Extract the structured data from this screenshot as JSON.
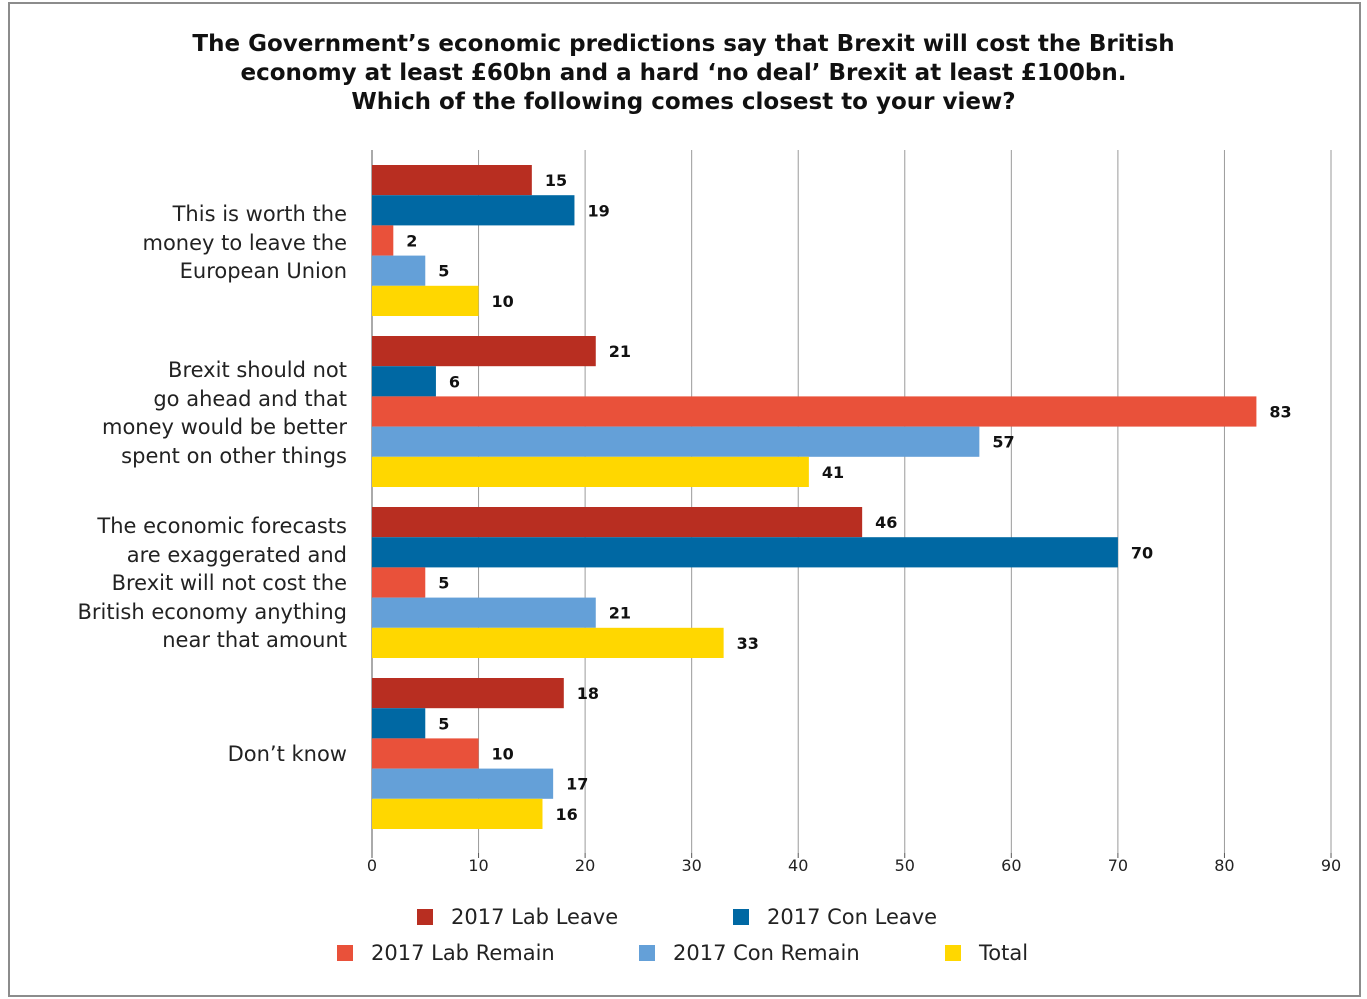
{
  "chart_data": {
    "type": "bar",
    "orientation": "horizontal",
    "title_lines": [
      "The Government’s economic predictions say that Brexit will cost the British",
      "economy at least £60bn and a hard ‘no deal’ Brexit at least £100bn.",
      "Which of the following comes closest to your view?"
    ],
    "categories": [
      [
        "This is worth the",
        "money to leave the",
        "European Union"
      ],
      [
        "Brexit should not",
        "go ahead and that",
        "money would be better",
        "spent on other things"
      ],
      [
        "The economic forecasts",
        "are exaggerated and",
        "Brexit will not cost the",
        "British economy anything",
        "near that amount"
      ],
      [
        "Don’t know"
      ]
    ],
    "series": [
      {
        "name": "2017 Lab Leave",
        "color": "#b82e21",
        "values": [
          15,
          21,
          46,
          18
        ]
      },
      {
        "name": "2017 Con Leave",
        "color": "#0068a3",
        "values": [
          19,
          6,
          70,
          5
        ]
      },
      {
        "name": "2017 Lab Remain",
        "color": "#e9513a",
        "values": [
          2,
          83,
          5,
          10
        ]
      },
      {
        "name": "2017 Con Remain",
        "color": "#64a0d8",
        "values": [
          5,
          57,
          21,
          17
        ]
      },
      {
        "name": "Total",
        "color": "#ffd700",
        "values": [
          10,
          41,
          33,
          16
        ]
      }
    ],
    "x_ticks": [
      "0",
      "10",
      "20",
      "30",
      "40",
      "50",
      "60",
      "70",
      "80",
      "90"
    ],
    "xlim": [
      0,
      90
    ],
    "grid": true,
    "legend_position": "bottom",
    "data_labels": true
  }
}
